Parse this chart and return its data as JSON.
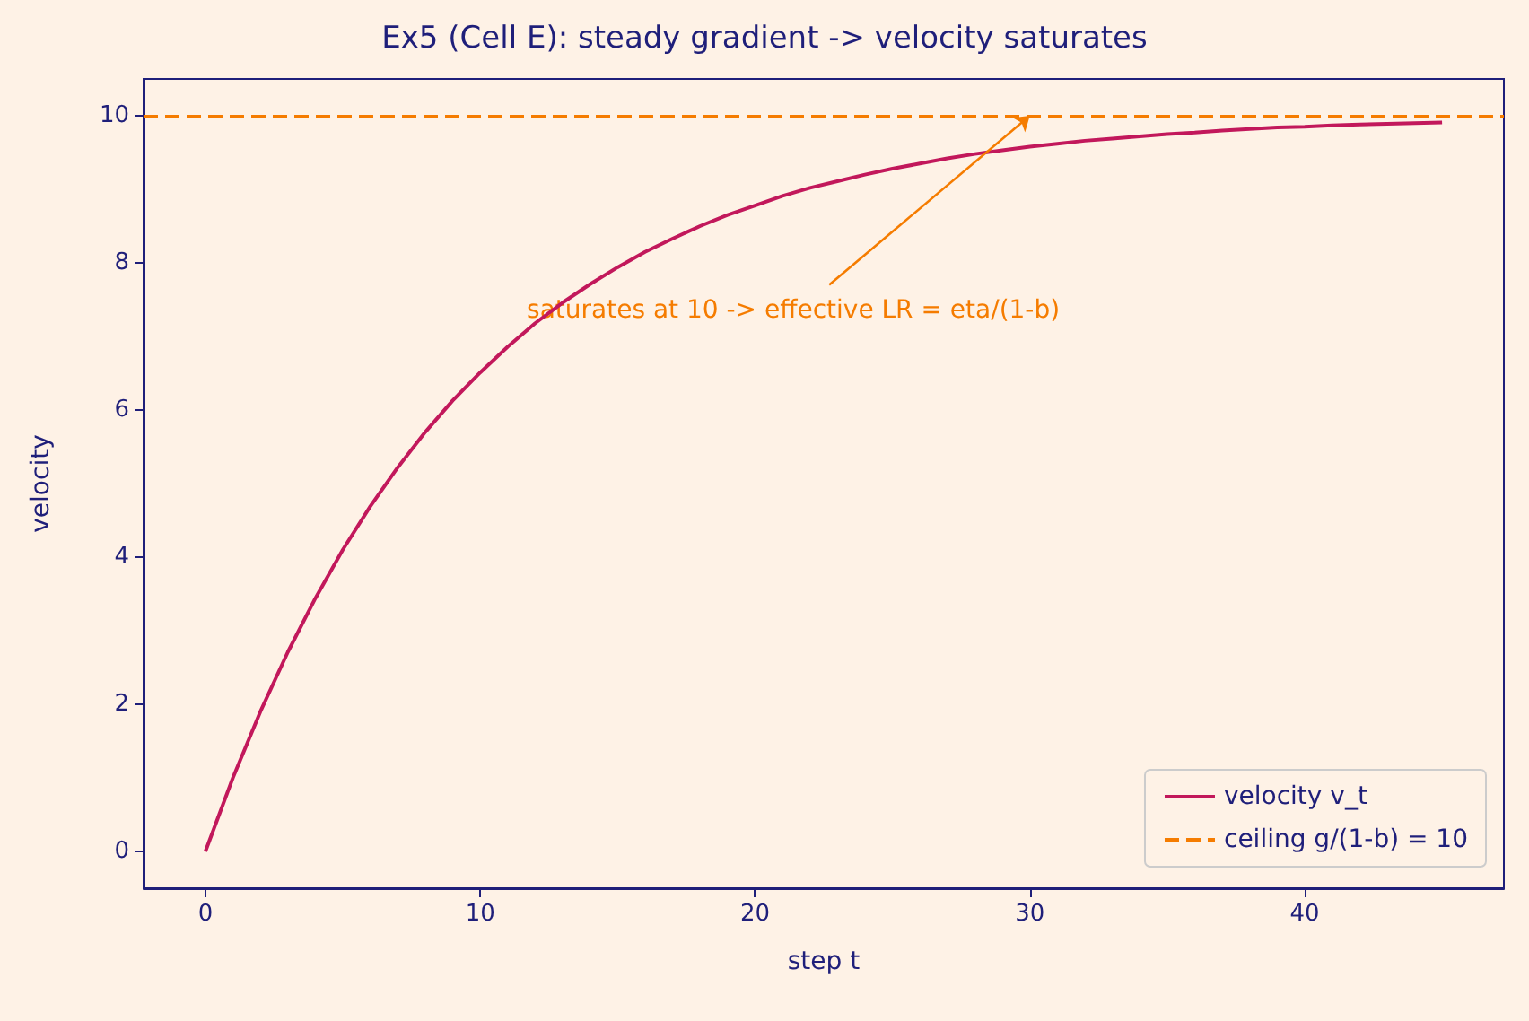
{
  "chart_data": {
    "type": "line",
    "title": "Ex5 (Cell E): steady gradient -> velocity saturates",
    "xlabel": "step t",
    "ylabel": "velocity",
    "x": [
      0,
      1,
      2,
      3,
      4,
      5,
      6,
      7,
      8,
      9,
      10,
      11,
      12,
      13,
      14,
      15,
      16,
      17,
      18,
      19,
      20,
      21,
      22,
      23,
      24,
      25,
      26,
      27,
      28,
      29,
      30,
      31,
      32,
      33,
      34,
      35,
      36,
      37,
      38,
      39,
      40,
      41,
      42,
      43,
      44,
      45
    ],
    "series": [
      {
        "name": "velocity v_t",
        "color": "#c2185b",
        "values": [
          0,
          1,
          1.9,
          2.71,
          3.44,
          4.1,
          4.69,
          5.22,
          5.7,
          6.13,
          6.51,
          6.86,
          7.18,
          7.46,
          7.71,
          7.94,
          8.15,
          8.33,
          8.5,
          8.65,
          8.78,
          8.91,
          9.02,
          9.11,
          9.2,
          9.28,
          9.35,
          9.42,
          9.48,
          9.53,
          9.58,
          9.62,
          9.66,
          9.69,
          9.72,
          9.75,
          9.77,
          9.8,
          9.82,
          9.84,
          9.85,
          9.87,
          9.88,
          9.89,
          9.9,
          9.91
        ]
      }
    ],
    "ref_lines": [
      {
        "axis": "y",
        "value": 10,
        "label": "ceiling g/(1-b) = 10",
        "color": "#f57c00",
        "line_style": "dashed"
      }
    ],
    "annotations": [
      {
        "text": "saturates at 10 -> effective LR = eta/(1-b)",
        "x": 30,
        "y": 10
      }
    ],
    "xlim": [
      -2.25,
      47.25
    ],
    "xticks": [
      0,
      10,
      20,
      30,
      40
    ],
    "ylim": [
      -0.5,
      10.5
    ],
    "yticks": [
      0,
      2,
      4,
      6,
      8,
      10
    ],
    "grid": false,
    "legend": "bottom right",
    "marker": "none",
    "line_style": "solid"
  }
}
